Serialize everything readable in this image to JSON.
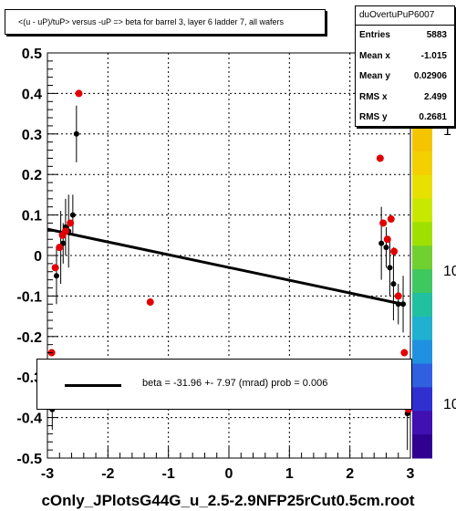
{
  "title": "<(u - uP)/tuP> versus  -uP => beta for barrel 3, layer 6 ladder 7, all wafers",
  "stats": {
    "name": "duOvertuPuP6007",
    "rows": [
      {
        "label": "Entries",
        "value": "5883"
      },
      {
        "label": "Mean x",
        "value": "-1.015"
      },
      {
        "label": "Mean y",
        "value": "0.02906"
      },
      {
        "label": "RMS x",
        "value": "2.499"
      },
      {
        "label": "RMS y",
        "value": "0.2681"
      }
    ]
  },
  "fit_text": "beta =  -31.96 +-  7.97 (mrad) prob = 0.006",
  "footer": "cOnly_JPlotsG44G_u_2.5-2.9NFP25rCut0.5cm.root",
  "palette_labels": [
    "1",
    "10",
    "10"
  ],
  "chart_data": {
    "type": "scatter",
    "xlim": [
      -3,
      3
    ],
    "ylim": [
      -0.5,
      0.5
    ],
    "x_ticks": [
      "-3",
      "-2",
      "-1",
      "0",
      "1",
      "2",
      "3"
    ],
    "y_ticks": [
      "-0.5",
      "-0.4",
      "-0.3",
      "-0.2",
      "-0.1",
      "0",
      "0.1",
      "0.2",
      "0.3",
      "0.4",
      "0.5"
    ],
    "grid": true,
    "fit_line": {
      "x": [
        -3,
        2.9
      ],
      "y": [
        0.065,
        -0.121
      ]
    },
    "profile_black": [
      {
        "x": -2.92,
        "y": -0.38
      },
      {
        "x": -2.85,
        "y": -0.05
      },
      {
        "x": -2.78,
        "y": 0.02
      },
      {
        "x": -2.74,
        "y": 0.03
      },
      {
        "x": -2.7,
        "y": 0.07
      },
      {
        "x": -2.65,
        "y": 0.06
      },
      {
        "x": -2.58,
        "y": 0.1
      },
      {
        "x": -2.52,
        "y": 0.3
      },
      {
        "x": 2.52,
        "y": 0.03
      },
      {
        "x": 2.6,
        "y": 0.02
      },
      {
        "x": 2.66,
        "y": -0.03
      },
      {
        "x": 2.72,
        "y": -0.07
      },
      {
        "x": 2.8,
        "y": -0.12
      },
      {
        "x": 2.88,
        "y": -0.12
      },
      {
        "x": 2.95,
        "y": -0.39
      }
    ],
    "profile_red": [
      {
        "x": -2.93,
        "y": -0.24
      },
      {
        "x": -2.87,
        "y": -0.03
      },
      {
        "x": -2.8,
        "y": 0.02
      },
      {
        "x": -2.75,
        "y": 0.05
      },
      {
        "x": -2.7,
        "y": 0.06
      },
      {
        "x": -2.62,
        "y": 0.08
      },
      {
        "x": -2.48,
        "y": 0.4
      },
      {
        "x": 2.5,
        "y": 0.24
      },
      {
        "x": 2.55,
        "y": 0.08
      },
      {
        "x": 2.62,
        "y": 0.04
      },
      {
        "x": 2.68,
        "y": 0.09
      },
      {
        "x": 2.73,
        "y": 0.01
      },
      {
        "x": 2.8,
        "y": -0.1
      },
      {
        "x": 2.9,
        "y": -0.24
      },
      {
        "x": 2.97,
        "y": -0.38
      },
      {
        "x": -1.3,
        "y": -0.115
      }
    ]
  }
}
